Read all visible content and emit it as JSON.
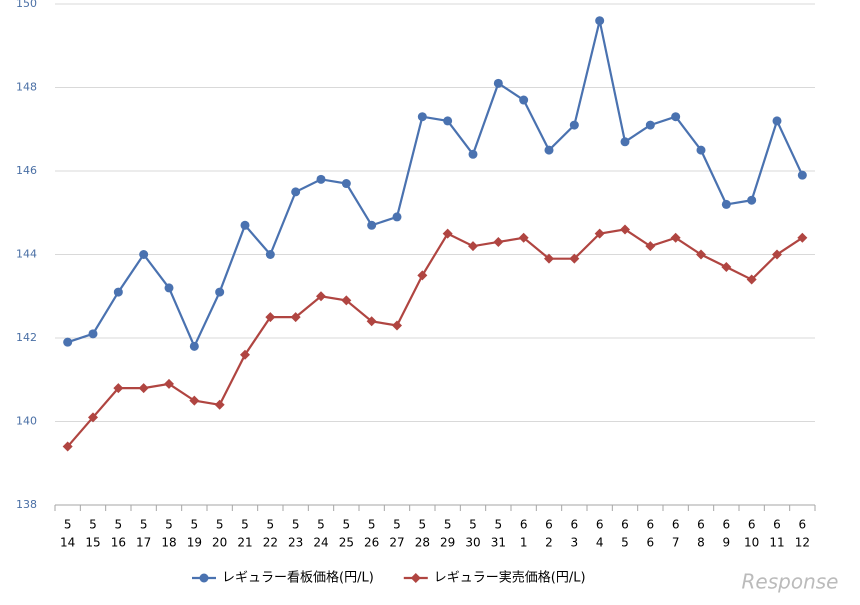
{
  "chart_data": {
    "type": "line",
    "categories": [
      [
        "5",
        "14"
      ],
      [
        "5",
        "15"
      ],
      [
        "5",
        "16"
      ],
      [
        "5",
        "17"
      ],
      [
        "5",
        "18"
      ],
      [
        "5",
        "19"
      ],
      [
        "5",
        "20"
      ],
      [
        "5",
        "21"
      ],
      [
        "5",
        "22"
      ],
      [
        "5",
        "23"
      ],
      [
        "5",
        "24"
      ],
      [
        "5",
        "25"
      ],
      [
        "5",
        "26"
      ],
      [
        "5",
        "27"
      ],
      [
        "5",
        "28"
      ],
      [
        "5",
        "29"
      ],
      [
        "5",
        "30"
      ],
      [
        "5",
        "31"
      ],
      [
        "6",
        "1"
      ],
      [
        "6",
        "2"
      ],
      [
        "6",
        "3"
      ],
      [
        "6",
        "4"
      ],
      [
        "6",
        "5"
      ],
      [
        "6",
        "6"
      ],
      [
        "6",
        "7"
      ],
      [
        "6",
        "8"
      ],
      [
        "6",
        "9"
      ],
      [
        "6",
        "10"
      ],
      [
        "6",
        "11"
      ],
      [
        "6",
        "12"
      ]
    ],
    "series": [
      {
        "name": "レギュラー看板価格(円/L)",
        "color": "#4a72b0",
        "marker": "circle",
        "values": [
          141.9,
          142.1,
          143.1,
          144.0,
          143.2,
          141.8,
          143.1,
          144.7,
          144.0,
          145.5,
          145.8,
          145.7,
          144.7,
          144.9,
          147.3,
          147.2,
          146.4,
          148.1,
          147.7,
          146.5,
          147.1,
          149.6,
          146.7,
          147.1,
          147.3,
          146.5,
          145.2,
          145.3,
          147.2,
          145.9
        ]
      },
      {
        "name": "レギュラー実売価格(円/L)",
        "color": "#b04541",
        "marker": "diamond",
        "values": [
          139.4,
          140.1,
          140.8,
          140.8,
          140.9,
          140.5,
          140.4,
          141.6,
          142.5,
          142.5,
          143.0,
          142.9,
          142.4,
          142.3,
          143.5,
          144.5,
          144.2,
          144.3,
          144.4,
          143.9,
          143.9,
          144.5,
          144.6,
          144.2,
          144.4,
          144.0,
          143.7,
          143.4,
          144.0,
          144.4
        ]
      }
    ],
    "ylim": [
      138,
      150
    ],
    "yticks": [
      138,
      140,
      142,
      144,
      146,
      148,
      150
    ],
    "grid": true,
    "legend": "bottom",
    "watermark": "Response"
  }
}
